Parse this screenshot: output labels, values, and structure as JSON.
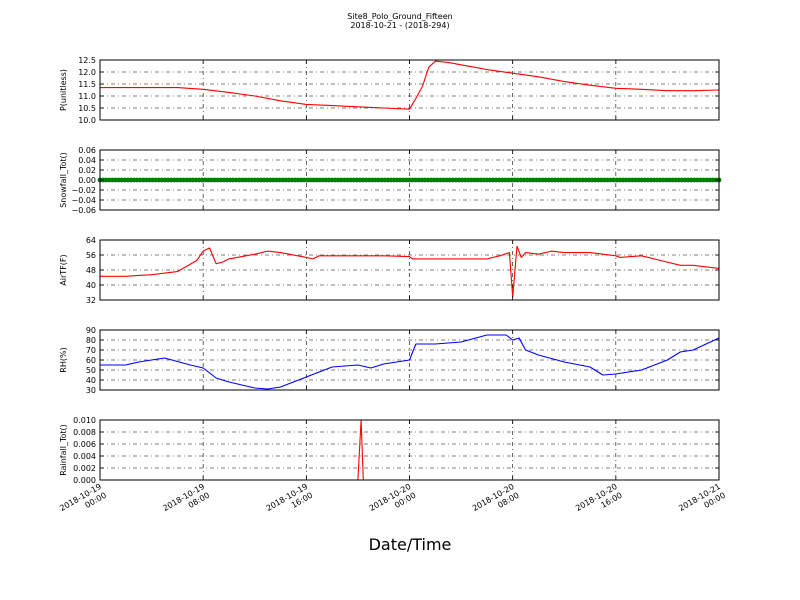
{
  "title": "Site8_Polo_Ground_Fifteen",
  "subtitle": "2018-10-21 - (2018-294)",
  "xlabel": "Date/Time",
  "x_ticks": [
    {
      "line1": "2018-10-19",
      "line2": "00:00"
    },
    {
      "line1": "2018-10-19",
      "line2": "08:00"
    },
    {
      "line1": "2018-10-19",
      "line2": "16:00"
    },
    {
      "line1": "2018-10-20",
      "line2": "00:00"
    },
    {
      "line1": "2018-10-20",
      "line2": "08:00"
    },
    {
      "line1": "2018-10-20",
      "line2": "16:00"
    },
    {
      "line1": "2018-10-21",
      "line2": "00:00"
    }
  ],
  "colors": {
    "red": "#ff0000",
    "green": "#008000",
    "blue": "#0000ff"
  },
  "chart_data": [
    {
      "type": "line",
      "ylabel": "P(unitless)",
      "ylim": [
        10.0,
        12.5
      ],
      "yticks": [
        "10.0",
        "10.5",
        "11.0",
        "11.5",
        "12.0",
        "12.5"
      ],
      "grid": true,
      "series": [
        {
          "color": "red",
          "x": [
            "2018-10-19 00:00",
            "2018-10-19 06:00",
            "2018-10-19 08:00",
            "2018-10-19 10:00",
            "2018-10-19 12:00",
            "2018-10-19 14:00",
            "2018-10-19 16:00",
            "2018-10-19 18:00",
            "2018-10-19 20:00",
            "2018-10-19 22:00",
            "2018-10-20 00:00",
            "2018-10-20 00:30",
            "2018-10-20 01:00",
            "2018-10-20 01:30",
            "2018-10-20 02:00",
            "2018-10-20 03:00",
            "2018-10-20 04:00",
            "2018-10-20 06:00",
            "2018-10-20 08:00",
            "2018-10-20 10:00",
            "2018-10-20 12:00",
            "2018-10-20 14:00",
            "2018-10-20 16:00",
            "2018-10-20 18:00",
            "2018-10-20 20:00",
            "2018-10-20 22:00",
            "2018-10-21 00:00"
          ],
          "y": [
            11.35,
            11.35,
            11.28,
            11.15,
            11.0,
            10.8,
            10.65,
            10.6,
            10.55,
            10.5,
            10.45,
            10.9,
            11.4,
            12.2,
            12.45,
            12.4,
            12.3,
            12.1,
            11.95,
            11.8,
            11.6,
            11.45,
            11.32,
            11.28,
            11.22,
            11.22,
            11.25
          ]
        }
      ]
    },
    {
      "type": "scatter",
      "ylabel": "Snowfall_Tot()",
      "ylim": [
        -0.06,
        0.06
      ],
      "yticks": [
        "−0.06",
        "−0.04",
        "−0.02",
        "0.00",
        "0.02",
        "0.04",
        "0.06"
      ],
      "grid": true,
      "series": [
        {
          "color": "green",
          "constant": 0.0
        }
      ]
    },
    {
      "type": "line",
      "ylabel": "AirTF(F)",
      "ylim": [
        30,
        68
      ],
      "yticks": [
        "32",
        "40",
        "48",
        "56",
        "64"
      ],
      "grid": true,
      "series": [
        {
          "color": "red",
          "x": [
            "2018-10-19 00:00",
            "2018-10-19 02:00",
            "2018-10-19 04:00",
            "2018-10-19 06:00",
            "2018-10-19 07:30",
            "2018-10-19 08:00",
            "2018-10-19 08:30",
            "2018-10-19 09:00",
            "2018-10-19 09:30",
            "2018-10-19 10:00",
            "2018-10-19 12:00",
            "2018-10-19 13:00",
            "2018-10-19 14:00",
            "2018-10-19 16:00",
            "2018-10-19 16:30",
            "2018-10-19 17:00",
            "2018-10-19 18:00",
            "2018-10-19 20:00",
            "2018-10-19 22:00",
            "2018-10-20 00:00",
            "2018-10-20 00:15",
            "2018-10-20 02:00",
            "2018-10-20 04:00",
            "2018-10-20 06:00",
            "2018-10-20 07:00",
            "2018-10-20 07:45",
            "2018-10-20 08:00",
            "2018-10-20 08:20",
            "2018-10-20 08:40",
            "2018-10-20 09:00",
            "2018-10-20 10:00",
            "2018-10-20 11:00",
            "2018-10-20 12:00",
            "2018-10-20 13:00",
            "2018-10-20 14:00",
            "2018-10-20 16:00",
            "2018-10-20 16:20",
            "2018-10-20 18:00",
            "2018-10-20 20:00",
            "2018-10-20 21:00",
            "2018-10-20 22:00",
            "2018-10-21 00:00"
          ],
          "y": [
            45,
            45,
            46,
            48,
            55,
            61,
            63,
            53,
            54,
            56,
            59,
            61,
            60,
            57,
            56,
            58,
            58,
            58,
            58,
            57.5,
            56,
            56,
            56,
            56,
            58,
            60,
            32,
            64,
            57,
            60,
            59,
            61,
            60,
            60,
            60,
            58,
            57,
            58,
            54,
            52,
            52,
            50
          ]
        }
      ]
    },
    {
      "type": "line",
      "ylabel": "RH(%)",
      "ylim": [
        30,
        90
      ],
      "yticks": [
        "30",
        "40",
        "50",
        "60",
        "70",
        "80",
        "90"
      ],
      "grid": true,
      "series": [
        {
          "color": "blue",
          "x": [
            "2018-10-19 00:00",
            "2018-10-19 02:00",
            "2018-10-19 03:00",
            "2018-10-19 05:00",
            "2018-10-19 07:00",
            "2018-10-19 08:00",
            "2018-10-19 09:00",
            "2018-10-19 10:00",
            "2018-10-19 12:00",
            "2018-10-19 13:00",
            "2018-10-19 14:00",
            "2018-10-19 16:00",
            "2018-10-19 18:00",
            "2018-10-19 20:00",
            "2018-10-19 21:00",
            "2018-10-19 22:00",
            "2018-10-20 00:00",
            "2018-10-20 00:30",
            "2018-10-20 02:00",
            "2018-10-20 04:00",
            "2018-10-20 06:00",
            "2018-10-20 07:30",
            "2018-10-20 08:00",
            "2018-10-20 08:30",
            "2018-10-20 09:00",
            "2018-10-20 10:00",
            "2018-10-20 12:00",
            "2018-10-20 14:00",
            "2018-10-20 15:00",
            "2018-10-20 16:00",
            "2018-10-20 18:00",
            "2018-10-20 20:00",
            "2018-10-20 21:00",
            "2018-10-20 22:00",
            "2018-10-21 00:00"
          ],
          "y": [
            55,
            55,
            58,
            62,
            55,
            52,
            42,
            38,
            32,
            31,
            33,
            43,
            53,
            55,
            52,
            56,
            60,
            76,
            76,
            78,
            85,
            85,
            80,
            82,
            70,
            65,
            58,
            53,
            45,
            46,
            50,
            60,
            68,
            70,
            82
          ]
        }
      ]
    },
    {
      "type": "line",
      "ylabel": "Rainfall_Tot()",
      "ylim": [
        0.0,
        0.01
      ],
      "yticks": [
        "0.000",
        "0.002",
        "0.004",
        "0.006",
        "0.008",
        "0.010"
      ],
      "grid": true,
      "series": [
        {
          "color": "red",
          "x": [
            "2018-10-19 00:00",
            "2018-10-19 20:00",
            "2018-10-19 20:15",
            "2018-10-19 20:25",
            "2018-10-21 00:00"
          ],
          "y": [
            0,
            0,
            0.01,
            0,
            0
          ]
        }
      ]
    }
  ]
}
